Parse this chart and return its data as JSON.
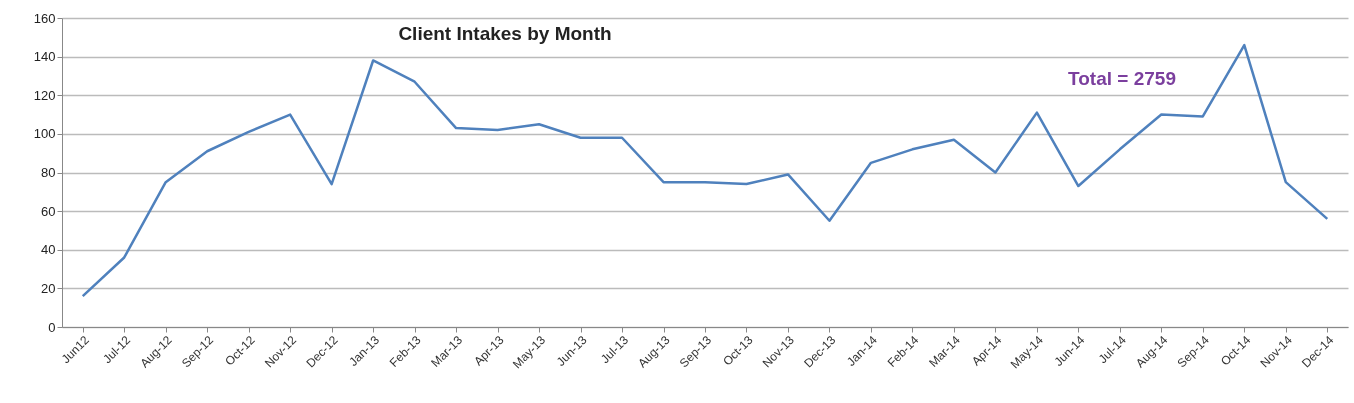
{
  "chart_data": {
    "type": "line",
    "title": "Client Intakes by Month",
    "categories": [
      "Jun12",
      "Jul-12",
      "Aug-12",
      "Sep-12",
      "Oct-12",
      "Nov-12",
      "Dec-12",
      "Jan-13",
      "Feb-13",
      "Mar-13",
      "Apr-13",
      "May-13",
      "Jun-13",
      "Jul-13",
      "Aug-13",
      "Sep-13",
      "Oct-13",
      "Nov-13",
      "Dec-13",
      "Jan-14",
      "Feb-14",
      "Mar-14",
      "Apr-14",
      "May-14",
      "Jun-14",
      "Jul-14",
      "Aug-14",
      "Sep-14",
      "Oct-14",
      "Nov-14",
      "Dec-14"
    ],
    "series": [
      {
        "color": "#4f81bd",
        "values": [
          16,
          36,
          75,
          91,
          101,
          110,
          74,
          138,
          127,
          103,
          102,
          105,
          98,
          98,
          75,
          75,
          74,
          79,
          55,
          85,
          92,
          97,
          80,
          111,
          73,
          92,
          110,
          109,
          146,
          75,
          56
        ]
      }
    ],
    "ylim": [
      0,
      160
    ],
    "yticks": [
      0,
      20,
      40,
      60,
      80,
      100,
      120,
      140,
      160
    ],
    "grid": "y",
    "annotations": [
      "Total = 2759"
    ]
  }
}
